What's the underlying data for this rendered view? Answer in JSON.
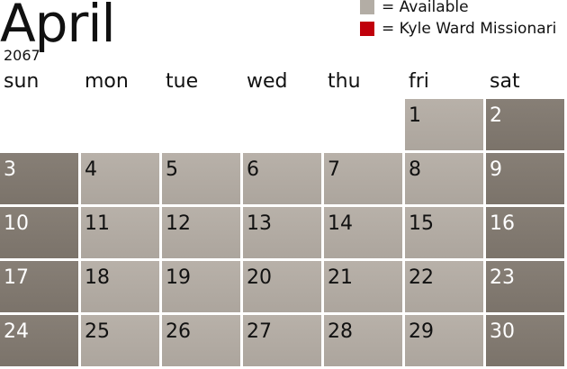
{
  "header": {
    "month": "April",
    "year": "2067"
  },
  "legend": [
    {
      "label": "= Available",
      "color": "#b3ada5"
    },
    {
      "label": "= Kyle Ward Missionari",
      "color": "#c0000b"
    }
  ],
  "weekdays": [
    "sun",
    "mon",
    "tue",
    "wed",
    "thu",
    "fri",
    "sat"
  ],
  "weeks": [
    [
      null,
      null,
      null,
      null,
      null,
      "1",
      "2"
    ],
    [
      "3",
      "4",
      "5",
      "6",
      "7",
      "8",
      "9"
    ],
    [
      "10",
      "11",
      "12",
      "13",
      "14",
      "15",
      "16"
    ],
    [
      "17",
      "18",
      "19",
      "20",
      "21",
      "22",
      "23"
    ],
    [
      "24",
      "25",
      "26",
      "27",
      "28",
      "29",
      "30"
    ]
  ]
}
